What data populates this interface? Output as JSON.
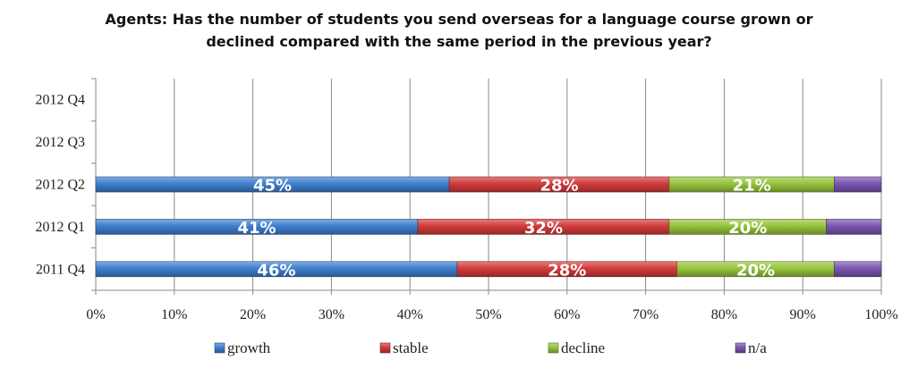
{
  "chart_data": {
    "type": "bar",
    "orientation": "horizontal",
    "stacked": true,
    "title_lines": [
      "Agents: Has the number of students you send overseas for a language course grown or",
      "declined compared with the same period in the previous year?"
    ],
    "categories": [
      "2012 Q4",
      "2012 Q3",
      "2012 Q2",
      "2012 Q1",
      "2011 Q4"
    ],
    "series": [
      {
        "name": "growth",
        "color": "#3f7fcf",
        "values": [
          null,
          null,
          45,
          41,
          46
        ],
        "labels": [
          "",
          "",
          "45%",
          "41%",
          "46%"
        ]
      },
      {
        "name": "stable",
        "color": "#d33b3b",
        "values": [
          null,
          null,
          28,
          32,
          28
        ],
        "labels": [
          "",
          "",
          "28%",
          "32%",
          "28%"
        ]
      },
      {
        "name": "decline",
        "color": "#96c43c",
        "values": [
          null,
          null,
          21,
          20,
          20
        ],
        "labels": [
          "",
          "",
          "21%",
          "20%",
          "20%"
        ]
      },
      {
        "name": "n/a",
        "color": "#7b55b0",
        "values": [
          null,
          null,
          6,
          7,
          6
        ],
        "labels": [
          "",
          "",
          "",
          "",
          ""
        ]
      }
    ],
    "xlim": [
      0,
      100
    ],
    "xticks": [
      0,
      10,
      20,
      30,
      40,
      50,
      60,
      70,
      80,
      90,
      100
    ],
    "xtick_labels": [
      "0%",
      "10%",
      "20%",
      "30%",
      "40%",
      "50%",
      "60%",
      "70%",
      "80%",
      "90%",
      "100%"
    ],
    "grid": true,
    "legend_position": "bottom"
  }
}
